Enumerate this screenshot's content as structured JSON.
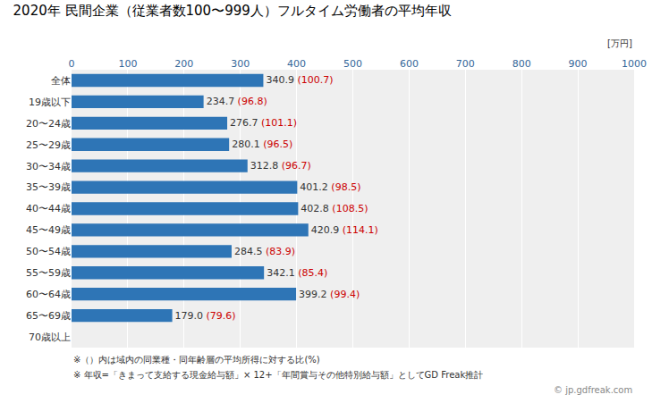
{
  "chart_data": {
    "type": "bar",
    "orientation": "horizontal",
    "title": "2020年 民間企業（従業者数100〜999人）フルタイム労働者の平均年収",
    "x_label": "[万円]",
    "categories": [
      "全体",
      "19歳以下",
      "20〜24歳",
      "25〜29歳",
      "30〜34歳",
      "35〜39歳",
      "40〜44歳",
      "45〜49歳",
      "50〜54歳",
      "55〜59歳",
      "60〜64歳",
      "65〜69歳",
      "70歳以上"
    ],
    "values": [
      340.9,
      234.7,
      276.7,
      280.1,
      312.8,
      401.2,
      402.8,
      420.9,
      284.5,
      342.1,
      399.2,
      179.0,
      0
    ],
    "value_labels": [
      "340.9",
      "234.7",
      "276.7",
      "280.1",
      "312.8",
      "401.2",
      "402.8",
      "420.9",
      "284.5",
      "342.1",
      "399.2",
      "179.0",
      null
    ],
    "ratios": {
      "values": [
        100.7,
        96.8,
        101.1,
        96.5,
        96.7,
        98.5,
        108.5,
        114.1,
        83.9,
        85.4,
        99.4,
        79.6,
        null
      ],
      "color": "#CC0000"
    },
    "color": "#2E75B6",
    "xlim": [
      0,
      1000
    ],
    "xticks": [
      0,
      100,
      200,
      300,
      400,
      500,
      600,
      700,
      800,
      900,
      1000
    ],
    "grid": true,
    "data_labels": true,
    "annotations": [
      "※（）内は域内の同業種・同年齢層の平均所得に対する比(%)",
      "※ 年収=「きまって支給する現金給与額」× 12+「年間賞与その他特別給与額」としてGD Freak推計",
      "© jp.gdfreak.com"
    ]
  }
}
